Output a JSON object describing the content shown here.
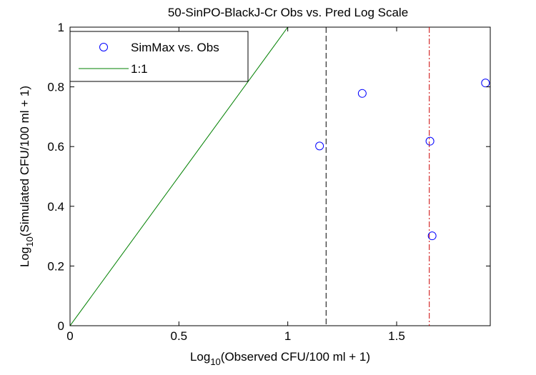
{
  "chart_data": {
    "type": "scatter",
    "title": "50-SinPO-BlackJ-Cr Obs vs. Pred Log Scale",
    "xlabel": {
      "prefix": "Log",
      "sub": "10",
      "suffix": "(Observed CFU/100 ml + 1)"
    },
    "ylabel": {
      "prefix": "Log",
      "sub": "10",
      "suffix": "(Simulated CFU/100 ml + 1)"
    },
    "xlim": [
      0,
      1.93
    ],
    "ylim": [
      0,
      1
    ],
    "xticks": [
      0,
      0.5,
      1,
      1.5
    ],
    "xtick_labels": [
      "0",
      "0.5",
      "1",
      "1.5"
    ],
    "yticks": [
      0,
      0.2,
      0.4,
      0.6,
      0.8,
      1
    ],
    "ytick_labels": [
      "0",
      "0.2",
      "0.4",
      "0.6",
      "0.8",
      "1"
    ],
    "grid": false,
    "legend_position": "top-left",
    "series": [
      {
        "name": "SimMax vs. Obs",
        "kind": "scatter",
        "marker": "circle-open",
        "color": "#0000ff",
        "points": [
          {
            "x": 1.146,
            "y": 0.602
          },
          {
            "x": 1.342,
            "y": 0.778
          },
          {
            "x": 1.653,
            "y": 0.618
          },
          {
            "x": 1.663,
            "y": 0.301
          },
          {
            "x": 1.908,
            "y": 0.813
          }
        ]
      },
      {
        "name": "1:1",
        "kind": "line",
        "color": "#008000",
        "points": [
          {
            "x": 0,
            "y": 0
          },
          {
            "x": 1,
            "y": 1
          }
        ]
      }
    ],
    "vertical_lines": [
      {
        "x": 1.176,
        "style": "dashed",
        "color": "#000000"
      },
      {
        "x": 1.65,
        "style": "dashdot",
        "color": "#cc0000"
      }
    ]
  }
}
